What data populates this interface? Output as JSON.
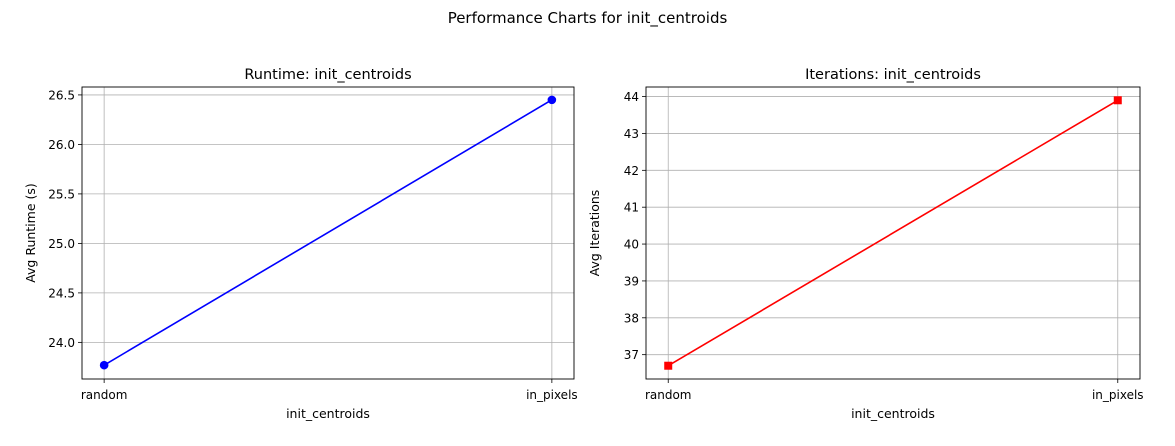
{
  "figure": {
    "title": "Performance Charts for init_centroids"
  },
  "chart_data": [
    {
      "type": "line",
      "title": "Runtime: init_centroids",
      "xlabel": "init_centroids",
      "ylabel": "Avg Runtime (s)",
      "categories": [
        "random",
        "in_pixels"
      ],
      "series": [
        {
          "values": [
            23.77,
            26.45
          ],
          "color": "#0000ff",
          "marker": "circle"
        }
      ],
      "ylim": [
        23.63,
        26.58
      ],
      "yticks": [
        24.0,
        24.5,
        25.0,
        25.5,
        26.0,
        26.5
      ],
      "ytick_labels": [
        "24.0",
        "24.5",
        "25.0",
        "25.5",
        "26.0",
        "26.5"
      ],
      "grid": true
    },
    {
      "type": "line",
      "title": "Iterations: init_centroids",
      "xlabel": "init_centroids",
      "ylabel": "Avg Iterations",
      "categories": [
        "random",
        "in_pixels"
      ],
      "series": [
        {
          "values": [
            36.7,
            43.9
          ],
          "color": "#ff0000",
          "marker": "square"
        }
      ],
      "ylim": [
        36.34,
        44.26
      ],
      "yticks": [
        37,
        38,
        39,
        40,
        41,
        42,
        43,
        44
      ],
      "ytick_labels": [
        "37",
        "38",
        "39",
        "40",
        "41",
        "42",
        "43",
        "44"
      ],
      "grid": true
    }
  ]
}
